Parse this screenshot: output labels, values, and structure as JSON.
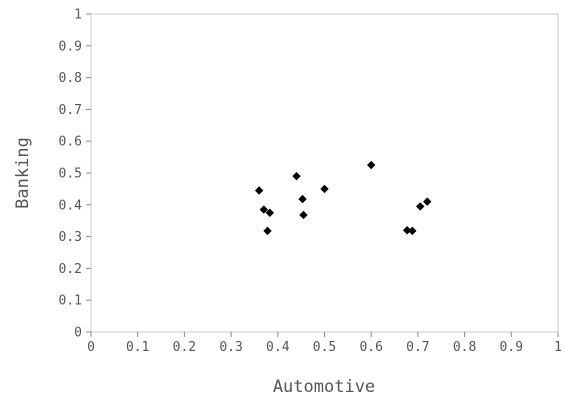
{
  "chart_data": {
    "type": "scatter",
    "xlabel": "Automotive",
    "ylabel": "Banking",
    "xlim": [
      0,
      1
    ],
    "ylim": [
      0,
      1
    ],
    "x_ticks": [
      "0",
      "0.1",
      "0.2",
      "0.3",
      "0.4",
      "0.5",
      "0.6",
      "0.7",
      "0.8",
      "0.9",
      "1"
    ],
    "y_ticks": [
      "0",
      "0.1",
      "0.2",
      "0.3",
      "0.4",
      "0.5",
      "0.6",
      "0.7",
      "0.8",
      "0.9",
      "1"
    ],
    "grid": false,
    "marker": "diamond",
    "colors": {
      "point": "#000000",
      "frame": "#c8c8c8",
      "text": "#555555"
    },
    "points": [
      {
        "x": 0.36,
        "y": 0.445
      },
      {
        "x": 0.37,
        "y": 0.385
      },
      {
        "x": 0.378,
        "y": 0.318
      },
      {
        "x": 0.383,
        "y": 0.375
      },
      {
        "x": 0.44,
        "y": 0.49
      },
      {
        "x": 0.453,
        "y": 0.418
      },
      {
        "x": 0.455,
        "y": 0.368
      },
      {
        "x": 0.5,
        "y": 0.45
      },
      {
        "x": 0.6,
        "y": 0.525
      },
      {
        "x": 0.677,
        "y": 0.32
      },
      {
        "x": 0.688,
        "y": 0.318
      },
      {
        "x": 0.705,
        "y": 0.395
      },
      {
        "x": 0.72,
        "y": 0.41
      }
    ]
  }
}
